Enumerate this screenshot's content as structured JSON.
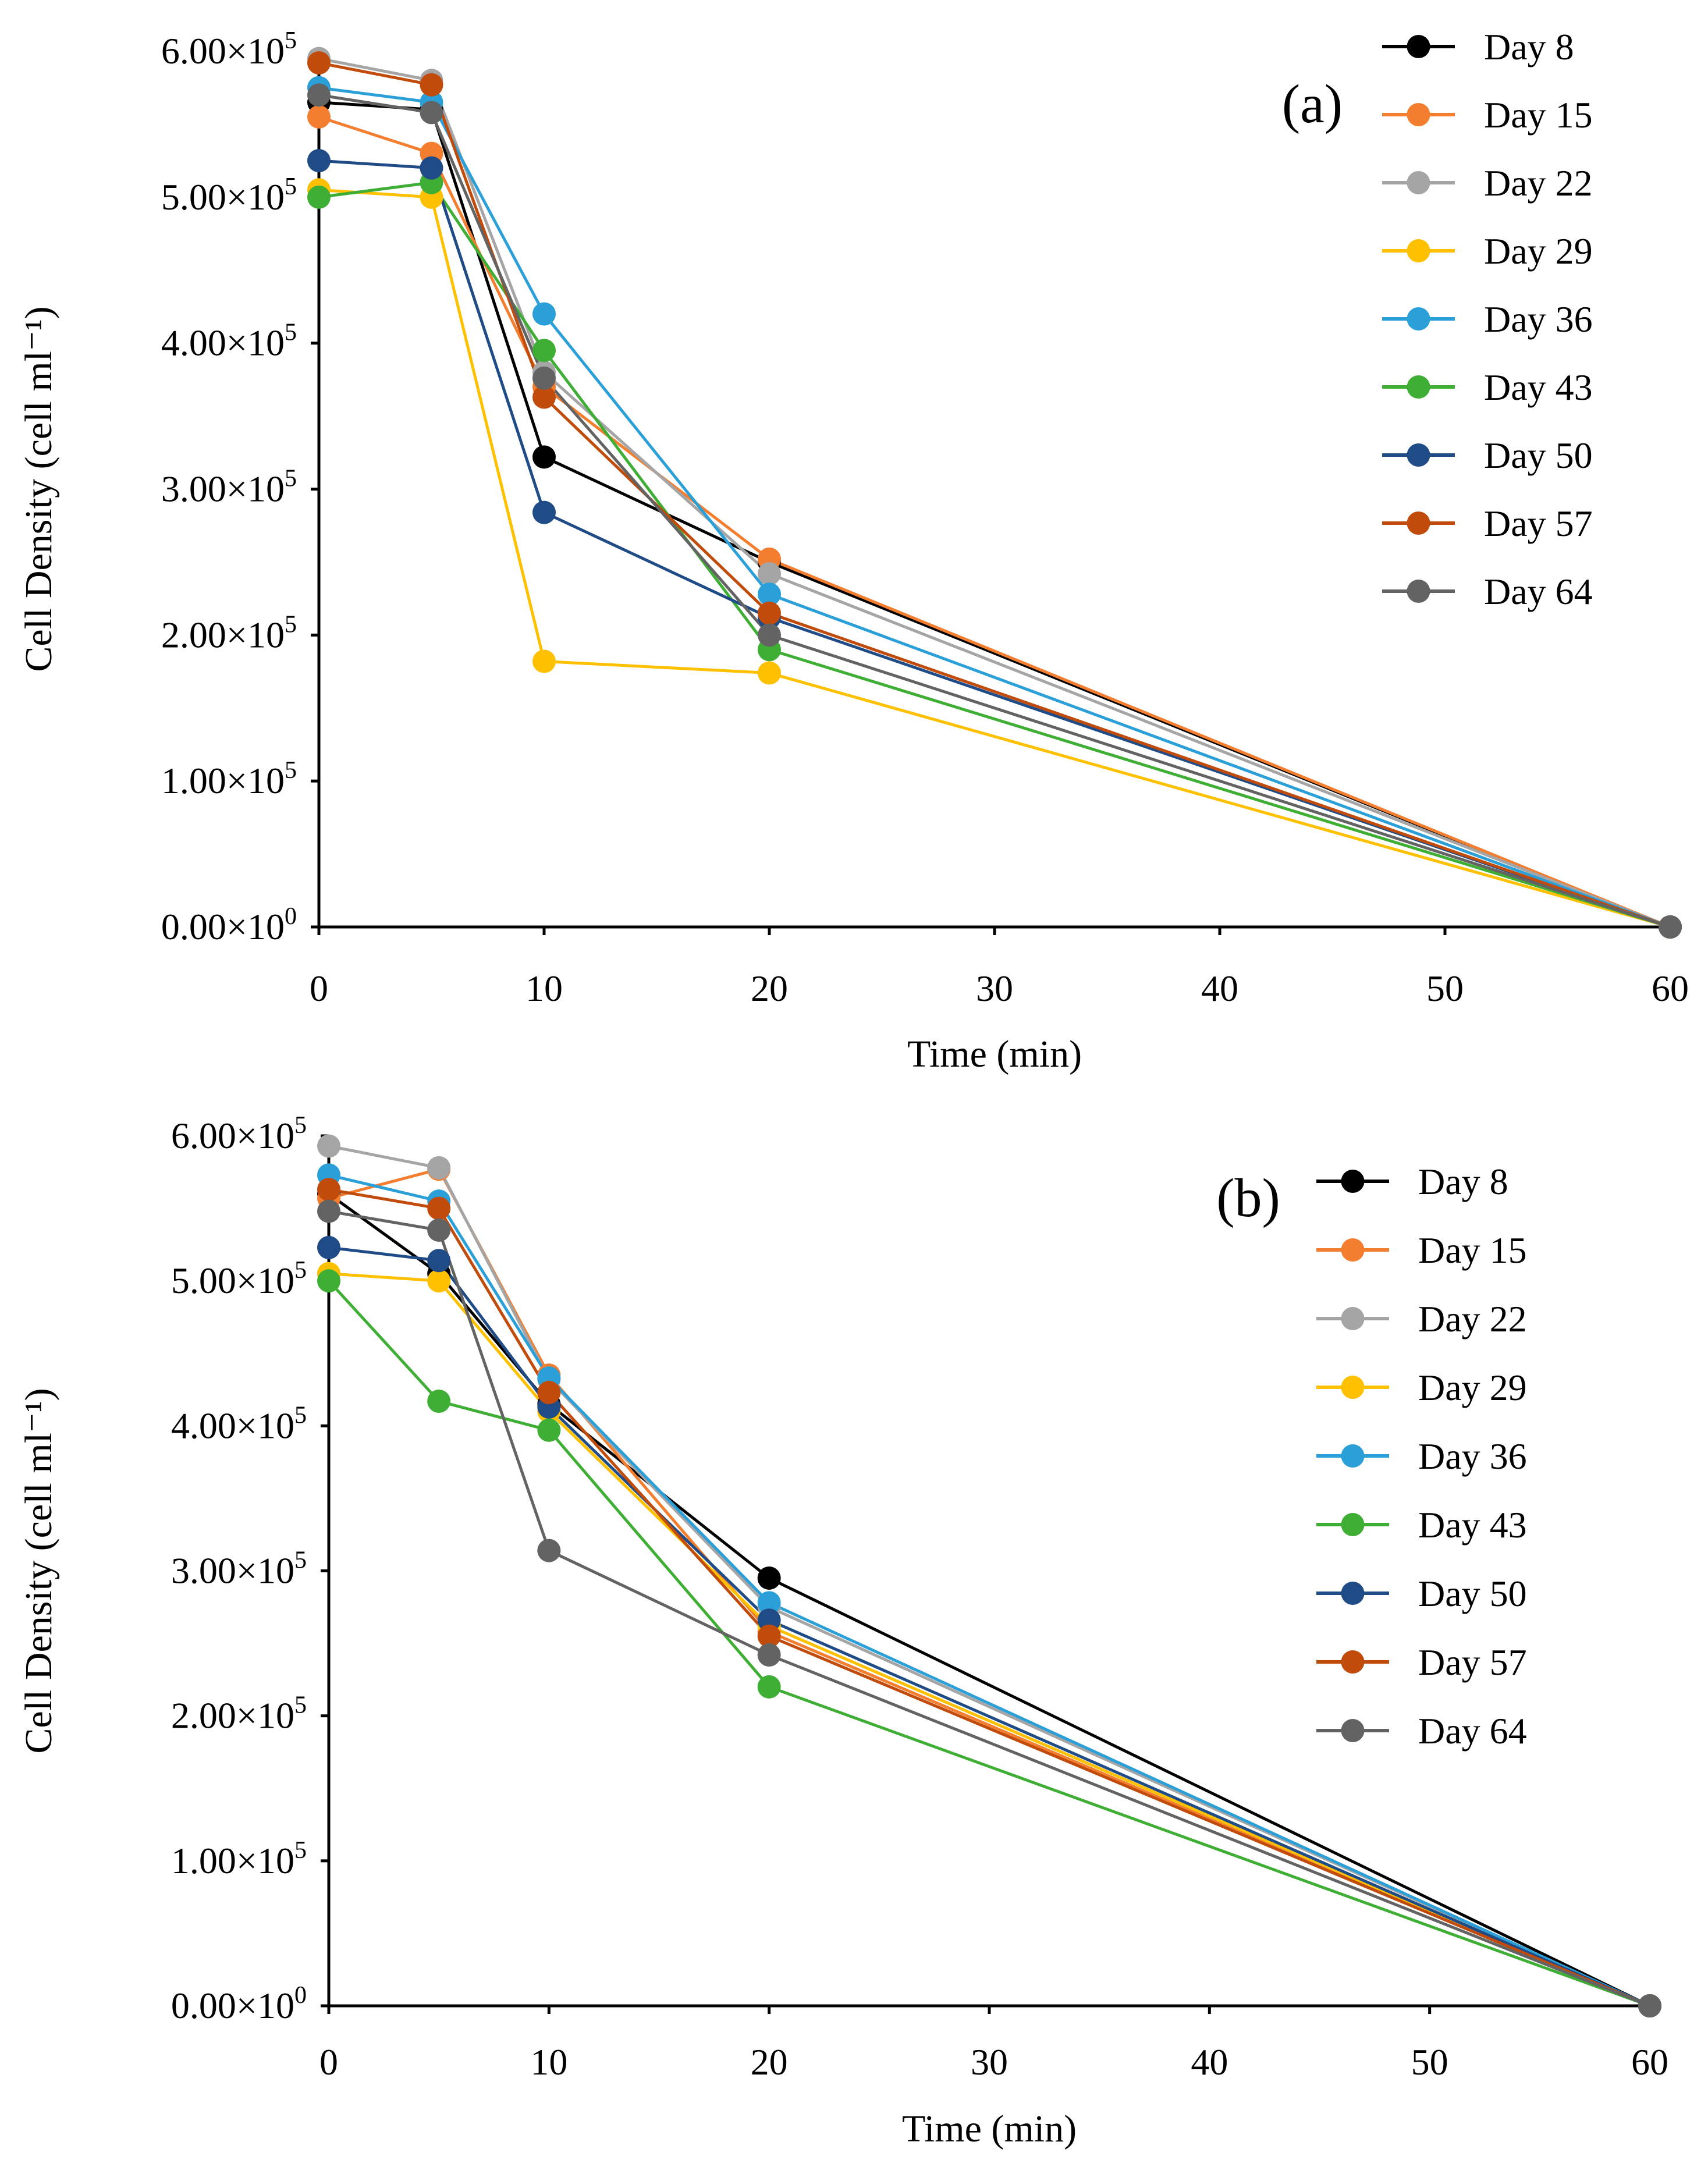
{
  "chart_data": [
    {
      "type": "line",
      "panel_label": "(a)",
      "xlabel": "Time (min)",
      "ylabel": "Cell Density (cell ml⁻¹)",
      "x": [
        0,
        5,
        10,
        20,
        60
      ],
      "xlim": [
        0,
        60
      ],
      "ylim": [
        0,
        600000
      ],
      "x_ticks": [
        "0",
        "10",
        "20",
        "30",
        "40",
        "50",
        "60"
      ],
      "y_ticks": [
        {
          "mant": "0.00×10",
          "exp": "0"
        },
        {
          "mant": "1.00×10",
          "exp": "5"
        },
        {
          "mant": "2.00×10",
          "exp": "5"
        },
        {
          "mant": "3.00×10",
          "exp": "5"
        },
        {
          "mant": "4.00×10",
          "exp": "5"
        },
        {
          "mant": "5.00×10",
          "exp": "5"
        },
        {
          "mant": "6.00×10",
          "exp": "5"
        }
      ],
      "legend_position": "top-right",
      "series": [
        {
          "name": "Day 8",
          "color": "#000000",
          "values": [
            565000,
            560000,
            322000,
            250000,
            0
          ]
        },
        {
          "name": "Day 15",
          "color": "#F47E2F",
          "values": [
            555000,
            530000,
            370000,
            252000,
            0
          ]
        },
        {
          "name": "Day 22",
          "color": "#A5A5A5",
          "values": [
            595000,
            580000,
            380000,
            242000,
            0
          ]
        },
        {
          "name": "Day 29",
          "color": "#FFC000",
          "values": [
            505000,
            500000,
            182000,
            174000,
            0
          ]
        },
        {
          "name": "Day 36",
          "color": "#2A9FD8",
          "values": [
            575000,
            565000,
            420000,
            228000,
            0
          ]
        },
        {
          "name": "Day 43",
          "color": "#3FAE35",
          "values": [
            500000,
            510000,
            395000,
            190000,
            0
          ]
        },
        {
          "name": "Day 50",
          "color": "#1F4B86",
          "values": [
            525000,
            520000,
            284000,
            212000,
            0
          ]
        },
        {
          "name": "Day 57",
          "color": "#C14B0B",
          "values": [
            592000,
            577000,
            363000,
            215000,
            0
          ]
        },
        {
          "name": "Day 64",
          "color": "#636363",
          "values": [
            570000,
            558000,
            376000,
            200000,
            0
          ]
        }
      ]
    },
    {
      "type": "line",
      "panel_label": "(b)",
      "xlabel": "Time (min)",
      "ylabel": "Cell Density (cell ml⁻¹)",
      "x": [
        0,
        5,
        10,
        20,
        60
      ],
      "xlim": [
        0,
        60
      ],
      "ylim": [
        0,
        600000
      ],
      "x_ticks": [
        "0",
        "10",
        "20",
        "30",
        "40",
        "50",
        "60"
      ],
      "y_ticks": [
        {
          "mant": "0.00×10",
          "exp": "0"
        },
        {
          "mant": "1.00×10",
          "exp": "5"
        },
        {
          "mant": "2.00×10",
          "exp": "5"
        },
        {
          "mant": "3.00×10",
          "exp": "5"
        },
        {
          "mant": "4.00×10",
          "exp": "5"
        },
        {
          "mant": "5.00×10",
          "exp": "5"
        },
        {
          "mant": "6.00×10",
          "exp": "5"
        }
      ],
      "legend_position": "top-right",
      "series": [
        {
          "name": "Day 8",
          "color": "#000000",
          "values": [
            560000,
            505000,
            415000,
            295000,
            0
          ]
        },
        {
          "name": "Day 15",
          "color": "#F47E2F",
          "values": [
            557000,
            577000,
            435000,
            258000,
            0
          ]
        },
        {
          "name": "Day 22",
          "color": "#A5A5A5",
          "values": [
            593000,
            578000,
            432000,
            275000,
            0
          ]
        },
        {
          "name": "Day 29",
          "color": "#FFC000",
          "values": [
            505000,
            500000,
            410000,
            262000,
            0
          ]
        },
        {
          "name": "Day 36",
          "color": "#2A9FD8",
          "values": [
            573000,
            555000,
            433000,
            278000,
            0
          ]
        },
        {
          "name": "Day 43",
          "color": "#3FAE35",
          "values": [
            500000,
            417000,
            397000,
            220000,
            0
          ]
        },
        {
          "name": "Day 50",
          "color": "#1F4B86",
          "values": [
            523000,
            514000,
            413000,
            266000,
            0
          ]
        },
        {
          "name": "Day 57",
          "color": "#C14B0B",
          "values": [
            563000,
            550000,
            423000,
            255000,
            0
          ]
        },
        {
          "name": "Day 64",
          "color": "#636363",
          "values": [
            548000,
            535000,
            314000,
            242000,
            0
          ]
        }
      ]
    }
  ]
}
